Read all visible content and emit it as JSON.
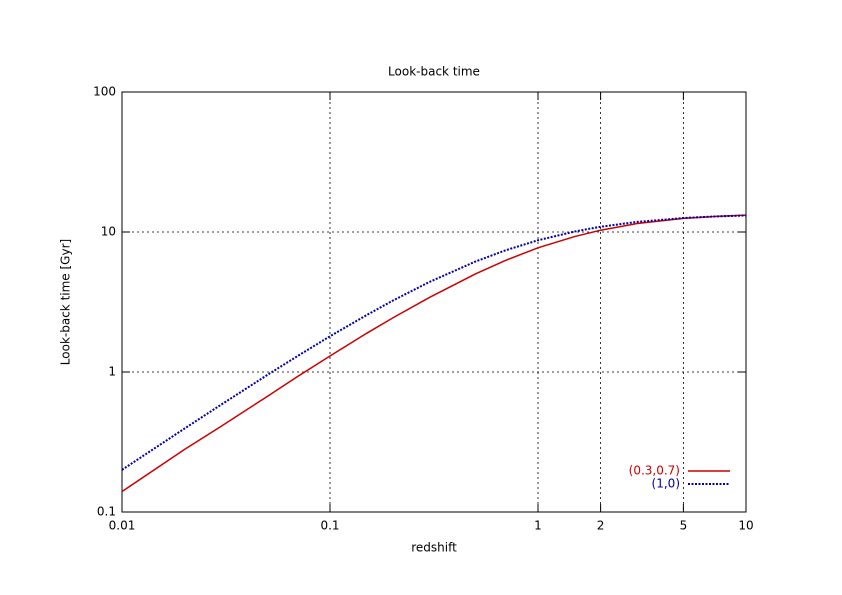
{
  "chart_data": {
    "type": "line",
    "title": "Look-back time",
    "x_label": "redshift",
    "y_label": "Look-back time [Gyr]",
    "x": [
      0.01,
      0.02,
      0.03,
      0.05,
      0.07,
      0.1,
      0.15,
      0.2,
      0.3,
      0.5,
      0.7,
      1,
      1.5,
      2,
      3,
      5,
      7,
      10
    ],
    "series": [
      {
        "name": "(0.3,0.7)",
        "color": "#cc0000",
        "style": "solid",
        "values": [
          0.14,
          0.28,
          0.41,
          0.67,
          0.93,
          1.3,
          1.89,
          2.43,
          3.4,
          5.02,
          6.28,
          7.71,
          9.28,
          10.3,
          11.5,
          12.5,
          12.9,
          13.2
        ]
      },
      {
        "name": "(1,0)",
        "color": "#0000aa",
        "style": "dotted",
        "values": [
          0.2,
          0.395,
          0.585,
          0.953,
          1.303,
          1.8,
          2.55,
          3.23,
          4.39,
          6.15,
          7.41,
          8.73,
          10.08,
          10.9,
          11.81,
          12.58,
          12.9,
          13.13
        ]
      }
    ],
    "xlim": [
      0.01,
      10
    ],
    "ylim": [
      0.1,
      100
    ],
    "xticks": [
      0.01,
      0.1,
      1,
      2,
      5,
      10
    ],
    "yticks": [
      0.1,
      1,
      10,
      100
    ],
    "xlog": true,
    "ylog": true,
    "grid": true,
    "legend": "bottom right"
  }
}
